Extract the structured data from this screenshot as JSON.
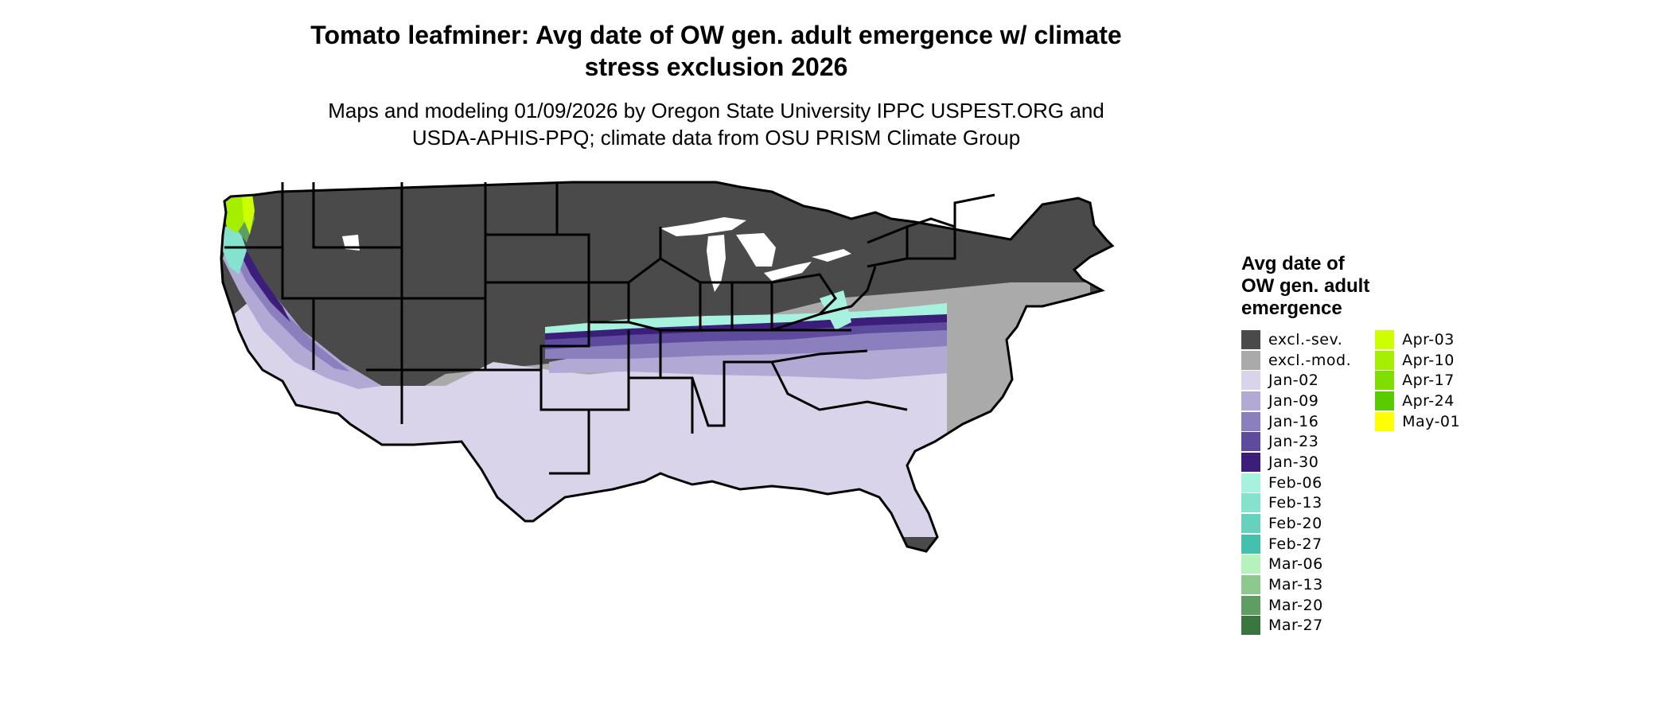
{
  "title_line1": "Tomato leafminer: Avg date of OW gen. adult emergence w/ climate",
  "title_line2": "stress exclusion 2026",
  "subtitle_line1": "Maps and modeling 01/09/2026 by Oregon State University IPPC USPEST.ORG and",
  "subtitle_line2": "USDA-APHIS-PPQ; climate data from OSU PRISM Climate Group",
  "legend": {
    "title_line1": "Avg date of",
    "title_line2": "OW gen. adult",
    "title_line3": "emergence",
    "col1": [
      {
        "label": "excl.-sev.",
        "color": "#4a4a4a"
      },
      {
        "label": "excl.-mod.",
        "color": "#aaaaaa"
      },
      {
        "label": "Jan-02",
        "color": "#d9d4ea"
      },
      {
        "label": "Jan-09",
        "color": "#b2a9d4"
      },
      {
        "label": "Jan-16",
        "color": "#8c7fbd"
      },
      {
        "label": "Jan-23",
        "color": "#5e4b9e"
      },
      {
        "label": "Jan-30",
        "color": "#3a1e7a"
      },
      {
        "label": "Feb-06",
        "color": "#a7f2df"
      },
      {
        "label": "Feb-13",
        "color": "#84e2cd"
      },
      {
        "label": "Feb-20",
        "color": "#66d1bd"
      },
      {
        "label": "Feb-27",
        "color": "#45bfae"
      },
      {
        "label": "Mar-06",
        "color": "#b6f2bd"
      },
      {
        "label": "Mar-13",
        "color": "#8cc98e"
      },
      {
        "label": "Mar-20",
        "color": "#5e9e63"
      },
      {
        "label": "Mar-27",
        "color": "#3a763f"
      }
    ],
    "col2": [
      {
        "label": "Apr-03",
        "color": "#ccff00"
      },
      {
        "label": "Apr-10",
        "color": "#a6ee00"
      },
      {
        "label": "Apr-17",
        "color": "#7fdd00"
      },
      {
        "label": "Apr-24",
        "color": "#58cc00"
      },
      {
        "label": "May-01",
        "color": "#ffff00"
      }
    ]
  }
}
